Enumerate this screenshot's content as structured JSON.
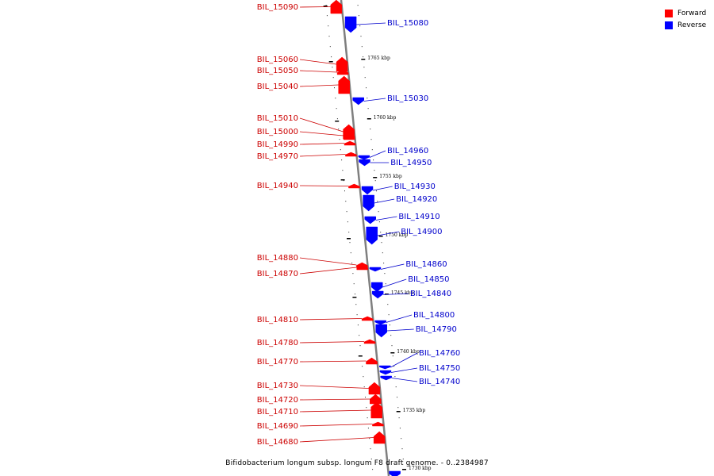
{
  "caption": "Bifidobacterium longum subsp. longum F8 draft genome. - 0..2384987",
  "legend": [
    {
      "label": "Forward",
      "color": "#ff0000"
    },
    {
      "label": "Reverse",
      "color": "#0000ff"
    }
  ],
  "colors": {
    "forward": "#ff0000",
    "reverse": "#0000ff",
    "forward_label": "#cc0000",
    "reverse_label": "#0000cc",
    "axis": "#7f7f7f"
  },
  "kbp_labels": [
    "1765 kbp",
    "1760 kbp",
    "1755 kbp",
    "1750 kbp",
    "1745 kbp",
    "1740 kbp",
    "1735 kbp",
    "1730 kbp"
  ],
  "forward_genes": [
    "BIL_15090",
    "BIL_15060",
    "BIL_15050",
    "BIL_15040",
    "BIL_15010",
    "BIL_15000",
    "BIL_14990",
    "BIL_14970",
    "BIL_14940",
    "BIL_14880",
    "BIL_14870",
    "BIL_14810",
    "BIL_14780",
    "BIL_14770",
    "BIL_14730",
    "BIL_14720",
    "BIL_14710",
    "BIL_14690",
    "BIL_14680"
  ],
  "reverse_genes": [
    "BIL_15080",
    "BIL_15030",
    "BIL_14960",
    "BIL_14950",
    "BIL_14930",
    "BIL_14920",
    "BIL_14910",
    "BIL_14900",
    "BIL_14860",
    "BIL_14850",
    "BIL_14840",
    "BIL_14800",
    "BIL_14790",
    "BIL_14760",
    "BIL_14750",
    "BIL_14740"
  ]
}
